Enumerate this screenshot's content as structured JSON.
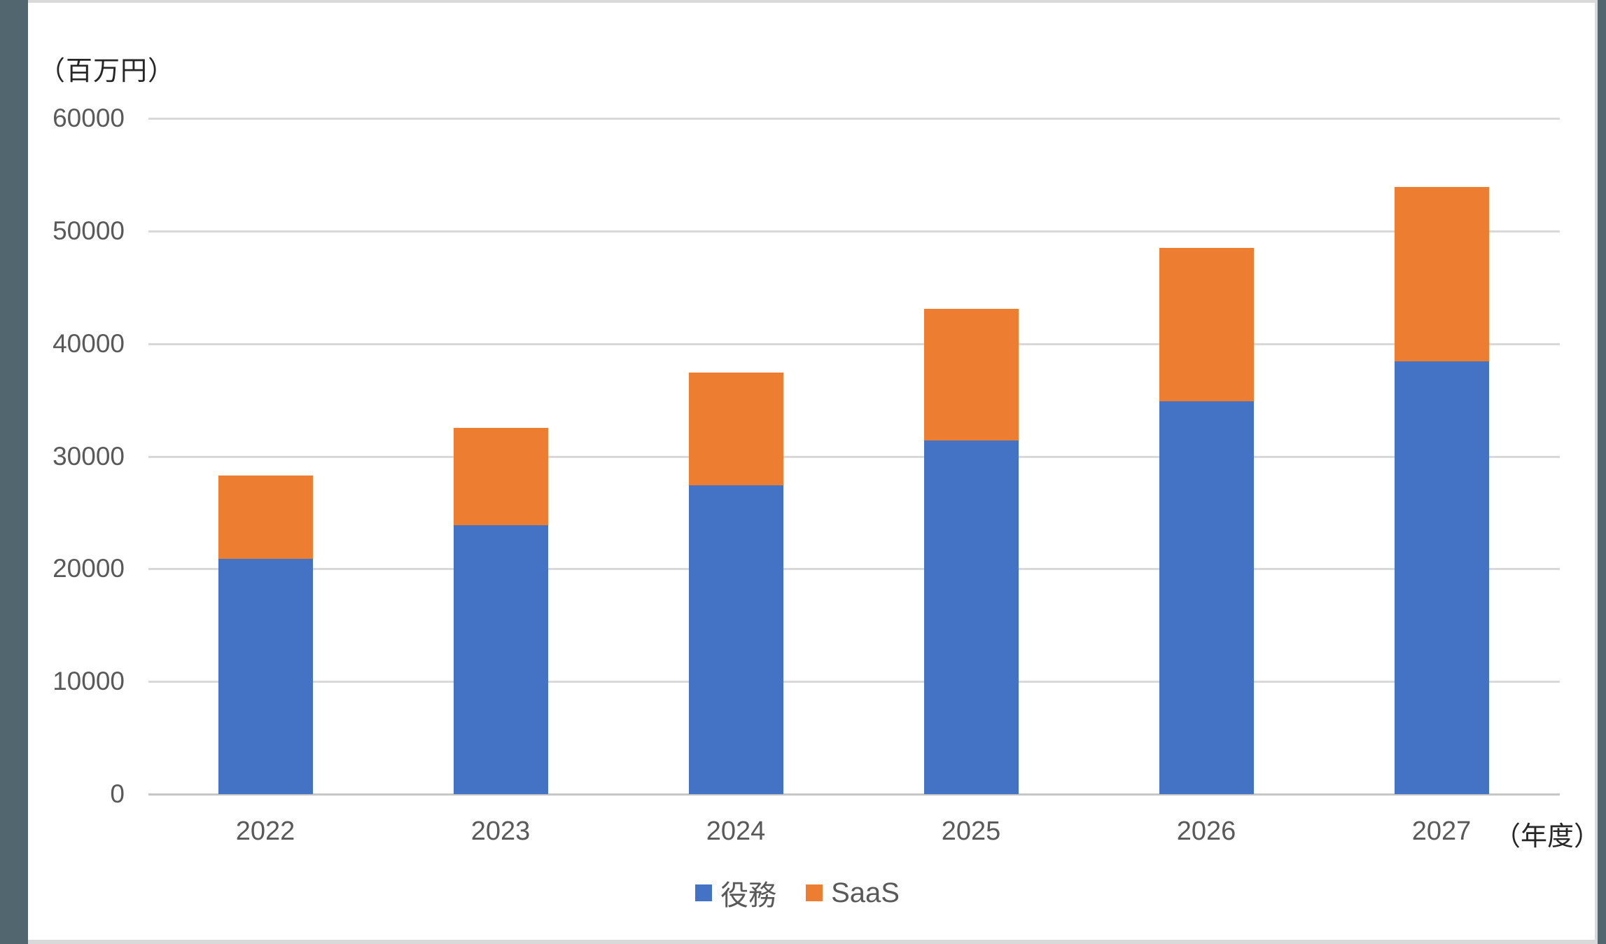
{
  "chart_data": {
    "type": "bar",
    "stacked": true,
    "title": "",
    "y_axis_title": "（百万円）",
    "x_axis_title": "（年度）",
    "categories": [
      "2022",
      "2023",
      "2024",
      "2025",
      "2026",
      "2027"
    ],
    "series": [
      {
        "name": "役務",
        "color": "#4472C4",
        "values": [
          20900,
          23900,
          27400,
          31400,
          34900,
          38400
        ]
      },
      {
        "name": "SaaS",
        "color": "#ED7D31",
        "values": [
          7400,
          8600,
          10000,
          11700,
          13600,
          15500
        ]
      }
    ],
    "totals": [
      28300,
      32500,
      37400,
      43100,
      48500,
      53900
    ],
    "ylim": [
      0,
      60000
    ],
    "y_tick_step": 10000,
    "y_tick_labels": [
      "0",
      "10000",
      "20000",
      "30000",
      "40000",
      "50000",
      "60000"
    ],
    "grid": true,
    "legend_position": "bottom"
  },
  "colors": {
    "series_yakumu": "#4472C4",
    "series_saas": "#ED7D31",
    "gridline": "#D9D9D9",
    "axis_line": "#C6C6C6",
    "tick_text": "#595959",
    "axis_title_text": "#262626",
    "frame": "#51666F",
    "canvas": "#FFFFFF",
    "border": "#D9D9D9"
  }
}
